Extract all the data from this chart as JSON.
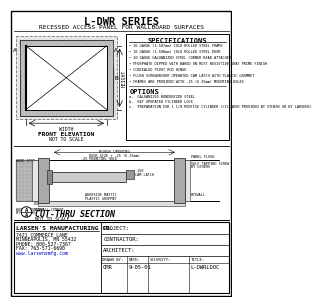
{
  "title_main": "L-DWR SERIES",
  "title_sub": "RECESSED ACCESS PANEL FOR WALLBOARD SURFACES",
  "bg_color": "#ffffff",
  "border_color": "#000000",
  "spec_title": "SPECIFICATIONS",
  "spec_items": [
    "16 GAUGE (1.587mm) COLD ROLLED STEEL FRAME",
    "16 GAUGE (1.588mm) COLD ROLLED STEEL DOOR",
    "20 GAUGE GALVANIZED STEEL CORNER BEAD ATTACHED",
    "PHOSPHATE DIPPED WITH BAKED ON RUST RESISTIVE GRAY PRIME FINISH",
    "CONCEALED PIVOT ROD HINGE",
    "FLUSH SCREWDRIVER OPERATED CAM LATCH WITH PLASTIC GROMMET",
    "FRAMES ARE PROVIDED WITH .25 (6.35mm) MOUNTING HOLES"
  ],
  "options_title": "OPTIONS",
  "options_items": [
    "a.  GALVANIZED BONDERIZED STEEL",
    "b.  KEY OPERATED CYLINDER LOCK",
    "c.  PREPARATION FOR 1 1/8 MORTISE CYLINDER (CYLINDER PROVIDED BY OTHERS OR BY LARSENS)"
  ],
  "front_elev_label": "FRONT ELEVATION",
  "front_elev_sub": "NOT TO SCALE",
  "section_label": "CUT-THRU SECTION",
  "section_sub": "NOT TO SCALE",
  "company_name": "LARSEN'S MANUFACTURING CO.",
  "company_addr1": "7421 COMMERCE LANE",
  "company_addr2": "MINNEAPOLIS, MN 55432",
  "company_phone": "PHONE: 800-527-7367",
  "company_fax": "FAX: 763-571-6690",
  "company_web": "www.larsensmfg.com",
  "proj_label": "PROJECT:",
  "contractor_label": "CONTRACTOR:",
  "architect_label": "ARCHITECT:",
  "drawn_by_label": "DRAWN BY:",
  "drawn_by_val": "CMR",
  "date_label": "DATE:",
  "date_val": "9-05-01",
  "security_label": "SECURITY:",
  "title_label": "TITLE:",
  "title_val": "L-DWRLDOC",
  "dim_width": "WIDTH",
  "dim_height": "HEIGHT",
  "dim_a": "A",
  "dim_b": "B"
}
